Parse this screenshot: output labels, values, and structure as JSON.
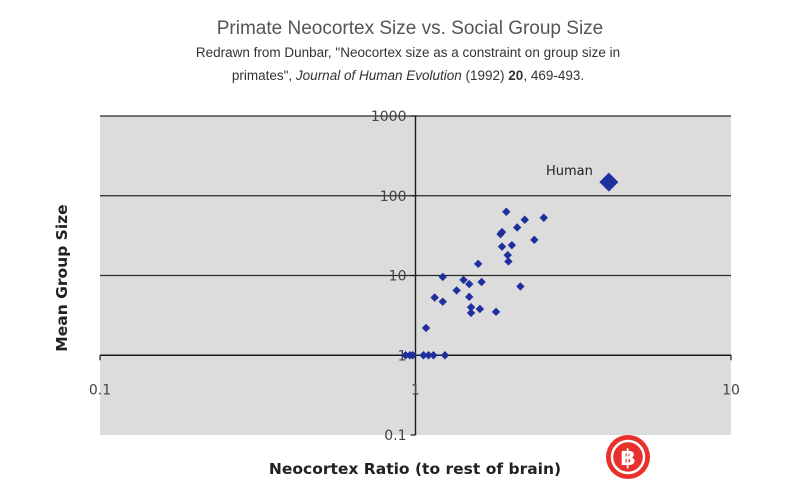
{
  "chart_data": {
    "type": "scatter",
    "title": "Primate Neocortex Size vs. Social Group Size",
    "subtitle_line1": "Redrawn from Dunbar, \"Neocortex size as a constraint on group size in",
    "subtitle_line2_prefix": "primates\", ",
    "subtitle_journal": "Journal of Human Evolution",
    "subtitle_year": " (1992) ",
    "subtitle_volume": "20",
    "subtitle_pages": ", 469-493.",
    "xlabel": "Neocortex Ratio (to rest of brain)",
    "ylabel": "Mean Group Size",
    "x_scale": "log",
    "y_scale": "log",
    "xlim": [
      0.1,
      10
    ],
    "ylim": [
      0.1,
      1000
    ],
    "x_ticks": [
      "0.1",
      "1",
      "10"
    ],
    "y_ticks": [
      "1000",
      "100",
      "10",
      "1",
      "0.1"
    ],
    "grid": "horizontal major gridlines",
    "plot_background": "#dcdcdc",
    "point_color": "#1f2f9e",
    "points": [
      {
        "x": 0.93,
        "y": 1.0
      },
      {
        "x": 0.96,
        "y": 1.0
      },
      {
        "x": 0.98,
        "y": 1.0
      },
      {
        "x": 1.06,
        "y": 1.0
      },
      {
        "x": 1.1,
        "y": 1.0
      },
      {
        "x": 1.14,
        "y": 1.0
      },
      {
        "x": 1.24,
        "y": 1.0
      },
      {
        "x": 1.08,
        "y": 2.2
      },
      {
        "x": 1.15,
        "y": 5.3
      },
      {
        "x": 1.22,
        "y": 4.7
      },
      {
        "x": 1.22,
        "y": 9.6
      },
      {
        "x": 1.35,
        "y": 6.5
      },
      {
        "x": 1.42,
        "y": 8.8
      },
      {
        "x": 1.48,
        "y": 7.8
      },
      {
        "x": 1.48,
        "y": 5.4
      },
      {
        "x": 1.5,
        "y": 4.0
      },
      {
        "x": 1.5,
        "y": 3.4
      },
      {
        "x": 1.58,
        "y": 14.0
      },
      {
        "x": 1.62,
        "y": 8.3
      },
      {
        "x": 1.6,
        "y": 3.8
      },
      {
        "x": 1.8,
        "y": 3.5
      },
      {
        "x": 1.86,
        "y": 33.0
      },
      {
        "x": 1.88,
        "y": 35.0
      },
      {
        "x": 1.88,
        "y": 23.0
      },
      {
        "x": 1.94,
        "y": 63.0
      },
      {
        "x": 1.96,
        "y": 18.0
      },
      {
        "x": 1.97,
        "y": 15.0
      },
      {
        "x": 2.02,
        "y": 24.0
      },
      {
        "x": 2.1,
        "y": 40.0
      },
      {
        "x": 2.15,
        "y": 7.3
      },
      {
        "x": 2.22,
        "y": 50.0
      },
      {
        "x": 2.38,
        "y": 28.0
      },
      {
        "x": 2.55,
        "y": 53.0
      }
    ],
    "highlight_point": {
      "x": 4.1,
      "y": 148,
      "label": "Human"
    }
  },
  "watermark": {
    "glyph": "฿"
  }
}
